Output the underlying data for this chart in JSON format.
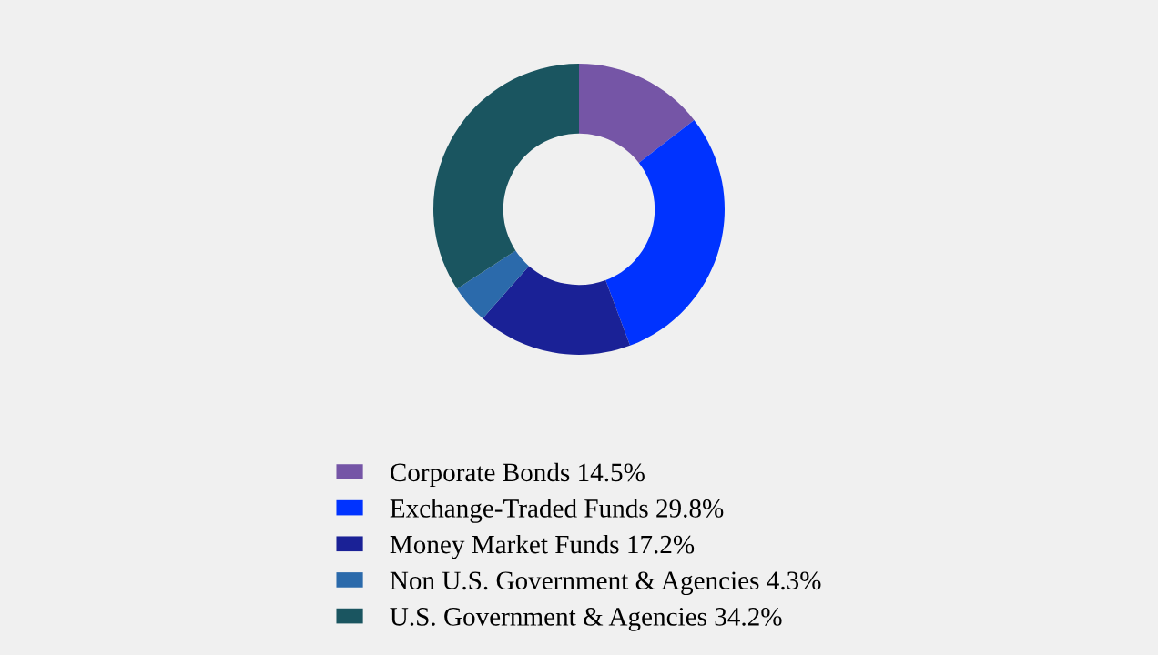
{
  "chart_data": {
    "type": "donut",
    "categories": [
      "Corporate Bonds",
      "Exchange-Traded Funds",
      "Money Market Funds",
      "Non U.S. Government & Agencies",
      "U.S. Government & Agencies"
    ],
    "values": [
      14.5,
      29.8,
      17.2,
      4.3,
      34.2
    ],
    "value_labels": [
      "14.5%",
      "29.8%",
      "17.2%",
      "4.3%",
      "34.2%"
    ],
    "colors": [
      "#7555a6",
      "#0033ff",
      "#1a2196",
      "#2b6aab",
      "#1a5560"
    ],
    "legend": "bottom"
  }
}
